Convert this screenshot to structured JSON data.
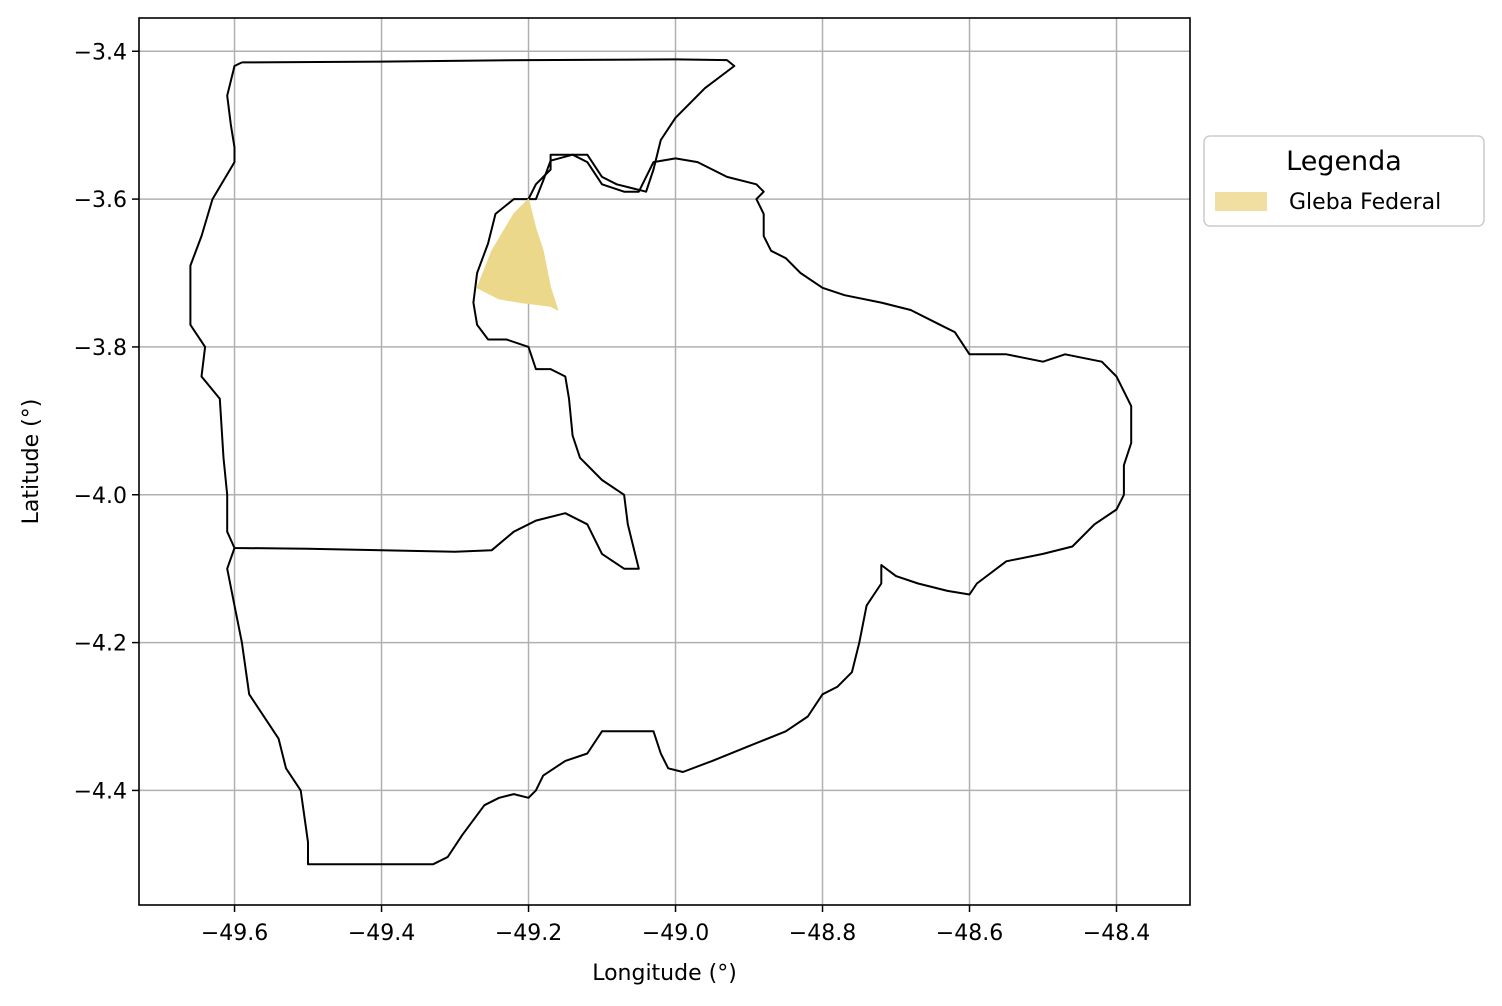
{
  "chart_data": {
    "type": "map",
    "xlabel": "Longitude (°)",
    "ylabel": "Latitude (°)",
    "xlim": [
      -49.73,
      -48.3
    ],
    "ylim": [
      -4.555,
      -3.355
    ],
    "xticks": [
      -49.6,
      -49.4,
      -49.2,
      -49.0,
      -48.8,
      -48.6,
      -48.4
    ],
    "xtick_labels": [
      "−49.6",
      "−49.4",
      "−49.2",
      "−49.0",
      "−48.8",
      "−48.6",
      "−48.4"
    ],
    "yticks": [
      -3.4,
      -3.6,
      -3.8,
      -4.0,
      -4.2,
      -4.4
    ],
    "ytick_labels": [
      "−3.4",
      "−3.6",
      "−3.8",
      "−4.0",
      "−4.2",
      "−4.4"
    ],
    "grid": true,
    "legend": {
      "title": "Legenda",
      "placement": "outside-right-top",
      "entries": [
        {
          "label": "Gleba Federal",
          "color": "#f0dfa0"
        }
      ]
    },
    "colors": {
      "boundary": "#000000",
      "gleba_fill": "#ecd88b",
      "grid": "#b0b0b0"
    },
    "layers": [
      {
        "name": "municipal-boundary-outer",
        "role": "boundary",
        "coords": [
          [
            -49.59,
            -3.415
          ],
          [
            -49.4,
            -3.414
          ],
          [
            -49.2,
            -3.412
          ],
          [
            -49.0,
            -3.411
          ],
          [
            -48.93,
            -3.412
          ],
          [
            -48.92,
            -3.42
          ],
          [
            -48.96,
            -3.45
          ],
          [
            -49.0,
            -3.49
          ],
          [
            -49.02,
            -3.52
          ],
          [
            -49.03,
            -3.56
          ],
          [
            -49.04,
            -3.59
          ],
          [
            -49.06,
            -3.585
          ],
          [
            -49.08,
            -3.58
          ],
          [
            -49.1,
            -3.57
          ],
          [
            -49.12,
            -3.54
          ],
          [
            -49.14,
            -3.54
          ],
          [
            -49.17,
            -3.548
          ],
          [
            -49.18,
            -3.575
          ],
          [
            -49.19,
            -3.6
          ],
          [
            -49.22,
            -3.6
          ],
          [
            -49.245,
            -3.62
          ],
          [
            -49.255,
            -3.66
          ],
          [
            -49.27,
            -3.7
          ],
          [
            -49.275,
            -3.74
          ],
          [
            -49.27,
            -3.77
          ],
          [
            -49.255,
            -3.79
          ],
          [
            -49.23,
            -3.79
          ],
          [
            -49.2,
            -3.8
          ],
          [
            -49.19,
            -3.83
          ],
          [
            -49.17,
            -3.83
          ],
          [
            -49.15,
            -3.84
          ],
          [
            -49.145,
            -3.87
          ],
          [
            -49.14,
            -3.92
          ],
          [
            -49.13,
            -3.95
          ],
          [
            -49.1,
            -3.98
          ],
          [
            -49.07,
            -4.0
          ],
          [
            -49.065,
            -4.04
          ],
          [
            -49.055,
            -4.08
          ],
          [
            -49.05,
            -4.1
          ],
          [
            -49.07,
            -4.1
          ],
          [
            -49.1,
            -4.08
          ],
          [
            -49.12,
            -4.04
          ],
          [
            -49.15,
            -4.025
          ],
          [
            -49.19,
            -4.035
          ],
          [
            -49.22,
            -4.05
          ],
          [
            -49.25,
            -4.075
          ],
          [
            -49.3,
            -4.077
          ],
          [
            -49.4,
            -4.075
          ],
          [
            -49.5,
            -4.073
          ],
          [
            -49.6,
            -4.072
          ],
          [
            -49.61,
            -4.05
          ],
          [
            -49.61,
            -4.0
          ],
          [
            -49.615,
            -3.95
          ],
          [
            -49.62,
            -3.87
          ],
          [
            -49.645,
            -3.84
          ],
          [
            -49.64,
            -3.8
          ],
          [
            -49.66,
            -3.77
          ],
          [
            -49.66,
            -3.73
          ],
          [
            -49.66,
            -3.69
          ],
          [
            -49.645,
            -3.65
          ],
          [
            -49.63,
            -3.6
          ],
          [
            -49.6,
            -3.55
          ],
          [
            -49.6,
            -3.53
          ],
          [
            -49.605,
            -3.5
          ],
          [
            -49.61,
            -3.46
          ],
          [
            -49.6,
            -3.42
          ],
          [
            -49.59,
            -3.415
          ]
        ]
      },
      {
        "name": "municipal-boundary-inner",
        "role": "boundary",
        "coords": [
          [
            -49.2,
            -3.6
          ],
          [
            -49.19,
            -3.58
          ],
          [
            -49.17,
            -3.56
          ],
          [
            -49.17,
            -3.54
          ],
          [
            -49.14,
            -3.54
          ],
          [
            -49.12,
            -3.55
          ],
          [
            -49.1,
            -3.58
          ],
          [
            -49.07,
            -3.59
          ],
          [
            -49.05,
            -3.59
          ],
          [
            -49.03,
            -3.55
          ],
          [
            -49.0,
            -3.545
          ],
          [
            -48.97,
            -3.55
          ],
          [
            -48.95,
            -3.56
          ],
          [
            -48.93,
            -3.57
          ],
          [
            -48.89,
            -3.58
          ],
          [
            -48.88,
            -3.59
          ],
          [
            -48.89,
            -3.6
          ],
          [
            -48.88,
            -3.62
          ],
          [
            -48.88,
            -3.65
          ],
          [
            -48.87,
            -3.67
          ],
          [
            -48.85,
            -3.68
          ],
          [
            -48.83,
            -3.7
          ],
          [
            -48.8,
            -3.72
          ],
          [
            -48.77,
            -3.73
          ],
          [
            -48.72,
            -3.74
          ],
          [
            -48.68,
            -3.75
          ],
          [
            -48.64,
            -3.77
          ],
          [
            -48.62,
            -3.78
          ],
          [
            -48.6,
            -3.81
          ],
          [
            -48.55,
            -3.81
          ],
          [
            -48.5,
            -3.82
          ],
          [
            -48.47,
            -3.81
          ],
          [
            -48.42,
            -3.82
          ],
          [
            -48.4,
            -3.84
          ],
          [
            -48.38,
            -3.88
          ],
          [
            -48.38,
            -3.93
          ],
          [
            -48.39,
            -3.96
          ],
          [
            -48.39,
            -4.0
          ],
          [
            -48.4,
            -4.02
          ],
          [
            -48.43,
            -4.04
          ],
          [
            -48.46,
            -4.07
          ],
          [
            -48.5,
            -4.08
          ],
          [
            -48.55,
            -4.09
          ],
          [
            -48.59,
            -4.12
          ],
          [
            -48.6,
            -4.135
          ],
          [
            -48.63,
            -4.13
          ],
          [
            -48.67,
            -4.12
          ],
          [
            -48.7,
            -4.11
          ],
          [
            -48.72,
            -4.095
          ],
          [
            -48.72,
            -4.12
          ],
          [
            -48.74,
            -4.15
          ],
          [
            -48.75,
            -4.2
          ],
          [
            -48.76,
            -4.24
          ],
          [
            -48.78,
            -4.26
          ],
          [
            -48.8,
            -4.27
          ],
          [
            -48.82,
            -4.3
          ],
          [
            -48.85,
            -4.32
          ],
          [
            -48.9,
            -4.34
          ],
          [
            -48.95,
            -4.36
          ],
          [
            -48.99,
            -4.375
          ],
          [
            -49.01,
            -4.37
          ],
          [
            -49.02,
            -4.35
          ],
          [
            -49.03,
            -4.32
          ],
          [
            -49.1,
            -4.32
          ],
          [
            -49.12,
            -4.35
          ],
          [
            -49.15,
            -4.36
          ],
          [
            -49.18,
            -4.38
          ],
          [
            -49.19,
            -4.4
          ],
          [
            -49.2,
            -4.41
          ],
          [
            -49.22,
            -4.405
          ],
          [
            -49.24,
            -4.41
          ],
          [
            -49.26,
            -4.42
          ],
          [
            -49.29,
            -4.46
          ],
          [
            -49.31,
            -4.49
          ],
          [
            -49.33,
            -4.5
          ],
          [
            -49.4,
            -4.5
          ],
          [
            -49.5,
            -4.5
          ],
          [
            -49.5,
            -4.47
          ],
          [
            -49.51,
            -4.4
          ],
          [
            -49.53,
            -4.37
          ],
          [
            -49.54,
            -4.33
          ],
          [
            -49.58,
            -4.27
          ],
          [
            -49.59,
            -4.2
          ],
          [
            -49.6,
            -4.15
          ],
          [
            -49.61,
            -4.1
          ],
          [
            -49.6,
            -4.072
          ]
        ]
      },
      {
        "name": "gleba-federal",
        "role": "fill",
        "coords": [
          [
            -49.2,
            -3.6
          ],
          [
            -49.19,
            -3.64
          ],
          [
            -49.18,
            -3.67
          ],
          [
            -49.17,
            -3.72
          ],
          [
            -49.16,
            -3.75
          ],
          [
            -49.17,
            -3.745
          ],
          [
            -49.21,
            -3.74
          ],
          [
            -49.24,
            -3.735
          ],
          [
            -49.27,
            -3.72
          ],
          [
            -49.25,
            -3.67
          ],
          [
            -49.22,
            -3.62
          ],
          [
            -49.2,
            -3.6
          ]
        ]
      }
    ]
  }
}
